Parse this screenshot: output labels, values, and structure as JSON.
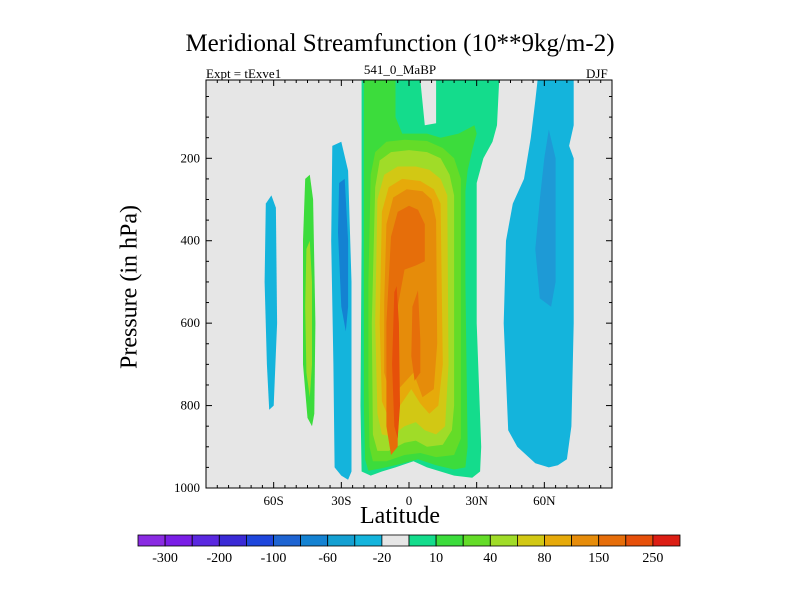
{
  "chart_data": {
    "type": "contour",
    "title": "Meridional Streamfunction (10**9kg/m-2)",
    "left_subtitle": "Expt = tExve1",
    "center_subtitle": "541_0_MaBP",
    "right_subtitle": "DJF",
    "xlabel": "Latitude",
    "ylabel": "Pressure (in hPa)",
    "xlim": [
      -90,
      90
    ],
    "ylim": [
      1000,
      10
    ],
    "xticks": [
      {
        "value": -60,
        "label": "60S"
      },
      {
        "value": -30,
        "label": "30S"
      },
      {
        "value": 0,
        "label": "0"
      },
      {
        "value": 30,
        "label": "30N"
      },
      {
        "value": 60,
        "label": "60N"
      }
    ],
    "yticks": [
      {
        "value": 200,
        "label": "200"
      },
      {
        "value": 400,
        "label": "400"
      },
      {
        "value": 600,
        "label": "600"
      },
      {
        "value": 800,
        "label": "800"
      },
      {
        "value": 1000,
        "label": "1000"
      }
    ],
    "colorbar": {
      "bins": [
        {
          "color": "#8a2be2"
        },
        {
          "color": "#7a1ee6"
        },
        {
          "color": "#5a28e0"
        },
        {
          "color": "#3a2ad6"
        },
        {
          "color": "#1e46dc"
        },
        {
          "color": "#1e64d2"
        },
        {
          "color": "#1482d2"
        },
        {
          "color": "#14a0d2"
        },
        {
          "color": "#14b4dc"
        },
        {
          "color": "#e6e6e6"
        },
        {
          "color": "#14dc8c"
        },
        {
          "color": "#3cdc3c"
        },
        {
          "color": "#64dc28"
        },
        {
          "color": "#a0dc28"
        },
        {
          "color": "#d2c814"
        },
        {
          "color": "#e6aa0a"
        },
        {
          "color": "#e68c0a"
        },
        {
          "color": "#e66e0a"
        },
        {
          "color": "#e6500a"
        },
        {
          "color": "#dc1e14"
        }
      ],
      "labels": [
        {
          "text": "-300",
          "edge": 1
        },
        {
          "text": "-200",
          "edge": 3
        },
        {
          "text": "-100",
          "edge": 5
        },
        {
          "text": "-60",
          "edge": 7
        },
        {
          "text": "-20",
          "edge": 9
        },
        {
          "text": "10",
          "edge": 11
        },
        {
          "text": "40",
          "edge": 13
        },
        {
          "text": "80",
          "edge": 15
        },
        {
          "text": "150",
          "edge": 17
        },
        {
          "text": "250",
          "edge": 19
        }
      ]
    },
    "regions": [
      {
        "name": "sh-polar-cell",
        "color": "#14b4dc",
        "pts": [
          [
            -63.5,
            310
          ],
          [
            -61,
            290
          ],
          [
            -59,
            320
          ],
          [
            -58.5,
            600
          ],
          [
            -60,
            800
          ],
          [
            -62,
            810
          ],
          [
            -63,
            700
          ],
          [
            -64,
            500
          ]
        ]
      },
      {
        "name": "sh-ferrel-cell",
        "color": "#3cdc3c",
        "pts": [
          [
            -46,
            250
          ],
          [
            -44,
            240
          ],
          [
            -42.5,
            300
          ],
          [
            -41.5,
            600
          ],
          [
            -42,
            820
          ],
          [
            -43,
            850
          ],
          [
            -45,
            830
          ],
          [
            -47,
            700
          ],
          [
            -47,
            400
          ]
        ]
      },
      {
        "name": "sh-ferrel-core",
        "color": "#a0dc28",
        "pts": [
          [
            -45.5,
            420
          ],
          [
            -44,
            400
          ],
          [
            -43,
            500
          ],
          [
            -43,
            700
          ],
          [
            -44,
            780
          ],
          [
            -45.5,
            720
          ],
          [
            -46,
            560
          ]
        ]
      },
      {
        "name": "sh-subtrop-cell",
        "color": "#14b4dc",
        "pts": [
          [
            -34,
            170
          ],
          [
            -30,
            160
          ],
          [
            -27,
            230
          ],
          [
            -25.5,
            500
          ],
          [
            -25.5,
            960
          ],
          [
            -27,
            980
          ],
          [
            -30,
            970
          ],
          [
            -33,
            950
          ],
          [
            -33.5,
            700
          ],
          [
            -34.5,
            400
          ]
        ]
      },
      {
        "name": "sh-subtrop-core",
        "color": "#1482d2",
        "pts": [
          [
            -31,
            260
          ],
          [
            -28.5,
            250
          ],
          [
            -27,
            400
          ],
          [
            -27,
            560
          ],
          [
            -28,
            620
          ],
          [
            -30,
            560
          ],
          [
            -31.5,
            380
          ]
        ]
      },
      {
        "name": "nh-cell-outer",
        "color": "#14b4dc",
        "pts": [
          [
            57,
            10
          ],
          [
            73,
            10
          ],
          [
            73,
            120
          ],
          [
            71,
            170
          ],
          [
            73,
            200
          ],
          [
            73,
            600
          ],
          [
            72,
            850
          ],
          [
            70,
            930
          ],
          [
            66,
            945
          ],
          [
            62,
            950
          ],
          [
            56,
            940
          ],
          [
            48,
            900
          ],
          [
            44,
            860
          ],
          [
            42,
            600
          ],
          [
            43,
            400
          ],
          [
            46,
            310
          ],
          [
            51,
            250
          ],
          [
            54,
            150
          ],
          [
            56,
            60
          ]
        ]
      },
      {
        "name": "nh-cell-inner",
        "color": "#1e9ad6",
        "pts": [
          [
            62,
            130
          ],
          [
            65,
            200
          ],
          [
            65,
            500
          ],
          [
            63,
            560
          ],
          [
            58,
            540
          ],
          [
            56,
            420
          ],
          [
            58,
            300
          ],
          [
            60,
            200
          ]
        ]
      },
      {
        "name": "hadley-10",
        "color": "#14dc8c",
        "pts": [
          [
            -21,
            10
          ],
          [
            5,
            10
          ],
          [
            7,
            120
          ],
          [
            12,
            115
          ],
          [
            12,
            10
          ],
          [
            40,
            10
          ],
          [
            39,
            120
          ],
          [
            37,
            160
          ],
          [
            33,
            200
          ],
          [
            31,
            240
          ],
          [
            30,
            260
          ],
          [
            30,
            600
          ],
          [
            32,
            900
          ],
          [
            31.5,
            960
          ],
          [
            28,
            975
          ],
          [
            20,
            970
          ],
          [
            8,
            950
          ],
          [
            2,
            935
          ],
          [
            -6,
            950
          ],
          [
            -12,
            960
          ],
          [
            -17,
            970
          ],
          [
            -21,
            960
          ],
          [
            -21.5,
            800
          ],
          [
            -21,
            400
          ]
        ]
      },
      {
        "name": "hadley-20",
        "color": "#3cdc3c",
        "pts": [
          [
            -20,
            10
          ],
          [
            -6,
            10
          ],
          [
            -6,
            100
          ],
          [
            -3,
            140
          ],
          [
            8,
            140
          ],
          [
            14,
            150
          ],
          [
            22,
            140
          ],
          [
            29,
            120
          ],
          [
            30,
            140
          ],
          [
            28,
            180
          ],
          [
            26,
            230
          ],
          [
            25,
            280
          ],
          [
            25,
            500
          ],
          [
            25.5,
            700
          ],
          [
            26,
            900
          ],
          [
            25,
            950
          ],
          [
            20,
            955
          ],
          [
            12,
            945
          ],
          [
            4,
            930
          ],
          [
            -4,
            942
          ],
          [
            -12,
            952
          ],
          [
            -18,
            958
          ],
          [
            -19.5,
            930
          ],
          [
            -20,
            800
          ],
          [
            -20,
            500
          ],
          [
            -20,
            250
          ]
        ]
      },
      {
        "name": "hadley-40",
        "color": "#64dc28",
        "pts": [
          [
            -17,
            240
          ],
          [
            -15,
            185
          ],
          [
            -10,
            160
          ],
          [
            -2,
            155
          ],
          [
            8,
            158
          ],
          [
            15,
            175
          ],
          [
            20,
            200
          ],
          [
            23,
            250
          ],
          [
            23,
            800
          ],
          [
            23,
            880
          ],
          [
            20,
            920
          ],
          [
            12,
            925
          ],
          [
            5,
            915
          ],
          [
            -2,
            920
          ],
          [
            -10,
            935
          ],
          [
            -16,
            935
          ],
          [
            -17.5,
            900
          ],
          [
            -18,
            750
          ],
          [
            -18,
            500
          ]
        ]
      },
      {
        "name": "hadley-60",
        "color": "#a0dc28",
        "pts": [
          [
            -15,
            270
          ],
          [
            -13,
            205
          ],
          [
            -8,
            185
          ],
          [
            0,
            180
          ],
          [
            8,
            185
          ],
          [
            14,
            200
          ],
          [
            18,
            240
          ],
          [
            20,
            290
          ],
          [
            20,
            800
          ],
          [
            19,
            860
          ],
          [
            15,
            895
          ],
          [
            8,
            900
          ],
          [
            3,
            885
          ],
          [
            -2,
            890
          ],
          [
            -9,
            910
          ],
          [
            -14,
            910
          ],
          [
            -16,
            870
          ],
          [
            -16.5,
            600
          ]
        ]
      },
      {
        "name": "hadley-80",
        "color": "#d2c814",
        "pts": [
          [
            -14,
            300
          ],
          [
            -11,
            240
          ],
          [
            -5,
            220
          ],
          [
            3,
            220
          ],
          [
            9,
            228
          ],
          [
            14,
            250
          ],
          [
            17,
            290
          ],
          [
            17.5,
            700
          ],
          [
            16,
            850
          ],
          [
            12,
            870
          ],
          [
            7,
            860
          ],
          [
            3,
            840
          ],
          [
            -2,
            850
          ],
          [
            -8,
            875
          ],
          [
            -12,
            870
          ],
          [
            -14,
            820
          ],
          [
            -15,
            600
          ]
        ]
      },
      {
        "name": "hadley-100",
        "color": "#e6aa0a",
        "pts": [
          [
            -12,
            330
          ],
          [
            -9,
            270
          ],
          [
            -3,
            250
          ],
          [
            5,
            255
          ],
          [
            11,
            275
          ],
          [
            14,
            310
          ],
          [
            15,
            700
          ],
          [
            13,
            800
          ],
          [
            9,
            820
          ],
          [
            5,
            795
          ],
          [
            1,
            760
          ],
          [
            -4,
            800
          ],
          [
            -9,
            830
          ],
          [
            -12,
            790
          ],
          [
            -13,
            600
          ]
        ]
      },
      {
        "name": "hadley-150",
        "color": "#e68c0a",
        "pts": [
          [
            -10,
            360
          ],
          [
            -7,
            295
          ],
          [
            -1,
            275
          ],
          [
            6,
            280
          ],
          [
            10,
            300
          ],
          [
            12,
            350
          ],
          [
            12.5,
            650
          ],
          [
            11,
            760
          ],
          [
            6,
            780
          ],
          [
            2,
            720
          ],
          [
            -3,
            750
          ],
          [
            -8,
            780
          ],
          [
            -11,
            720
          ],
          [
            -11,
            550
          ]
        ]
      },
      {
        "name": "hadley-200",
        "color": "#e66e0a",
        "pts": [
          [
            -8,
            390
          ],
          [
            -5,
            330
          ],
          [
            0,
            315
          ],
          [
            4,
            325
          ],
          [
            7,
            360
          ],
          [
            7,
            450
          ],
          [
            3,
            460
          ],
          [
            -2,
            470
          ],
          [
            -5,
            560
          ],
          [
            -5,
            900
          ],
          [
            -8,
            920
          ],
          [
            -10,
            850
          ],
          [
            -10,
            600
          ]
        ]
      },
      {
        "name": "hadley-200-east",
        "color": "#e66e0a",
        "pts": [
          [
            4,
            520
          ],
          [
            5,
            640
          ],
          [
            5,
            720
          ],
          [
            2.5,
            740
          ],
          [
            1,
            680
          ],
          [
            1.5,
            560
          ]
        ]
      },
      {
        "name": "hadley-250",
        "color": "#e6500a",
        "pts": [
          [
            -6.5,
            525
          ],
          [
            -5.5,
            510
          ],
          [
            -4.5,
            600
          ],
          [
            -4,
            800
          ],
          [
            -5,
            880
          ],
          [
            -6.5,
            850
          ],
          [
            -7.5,
            700
          ]
        ]
      }
    ]
  }
}
